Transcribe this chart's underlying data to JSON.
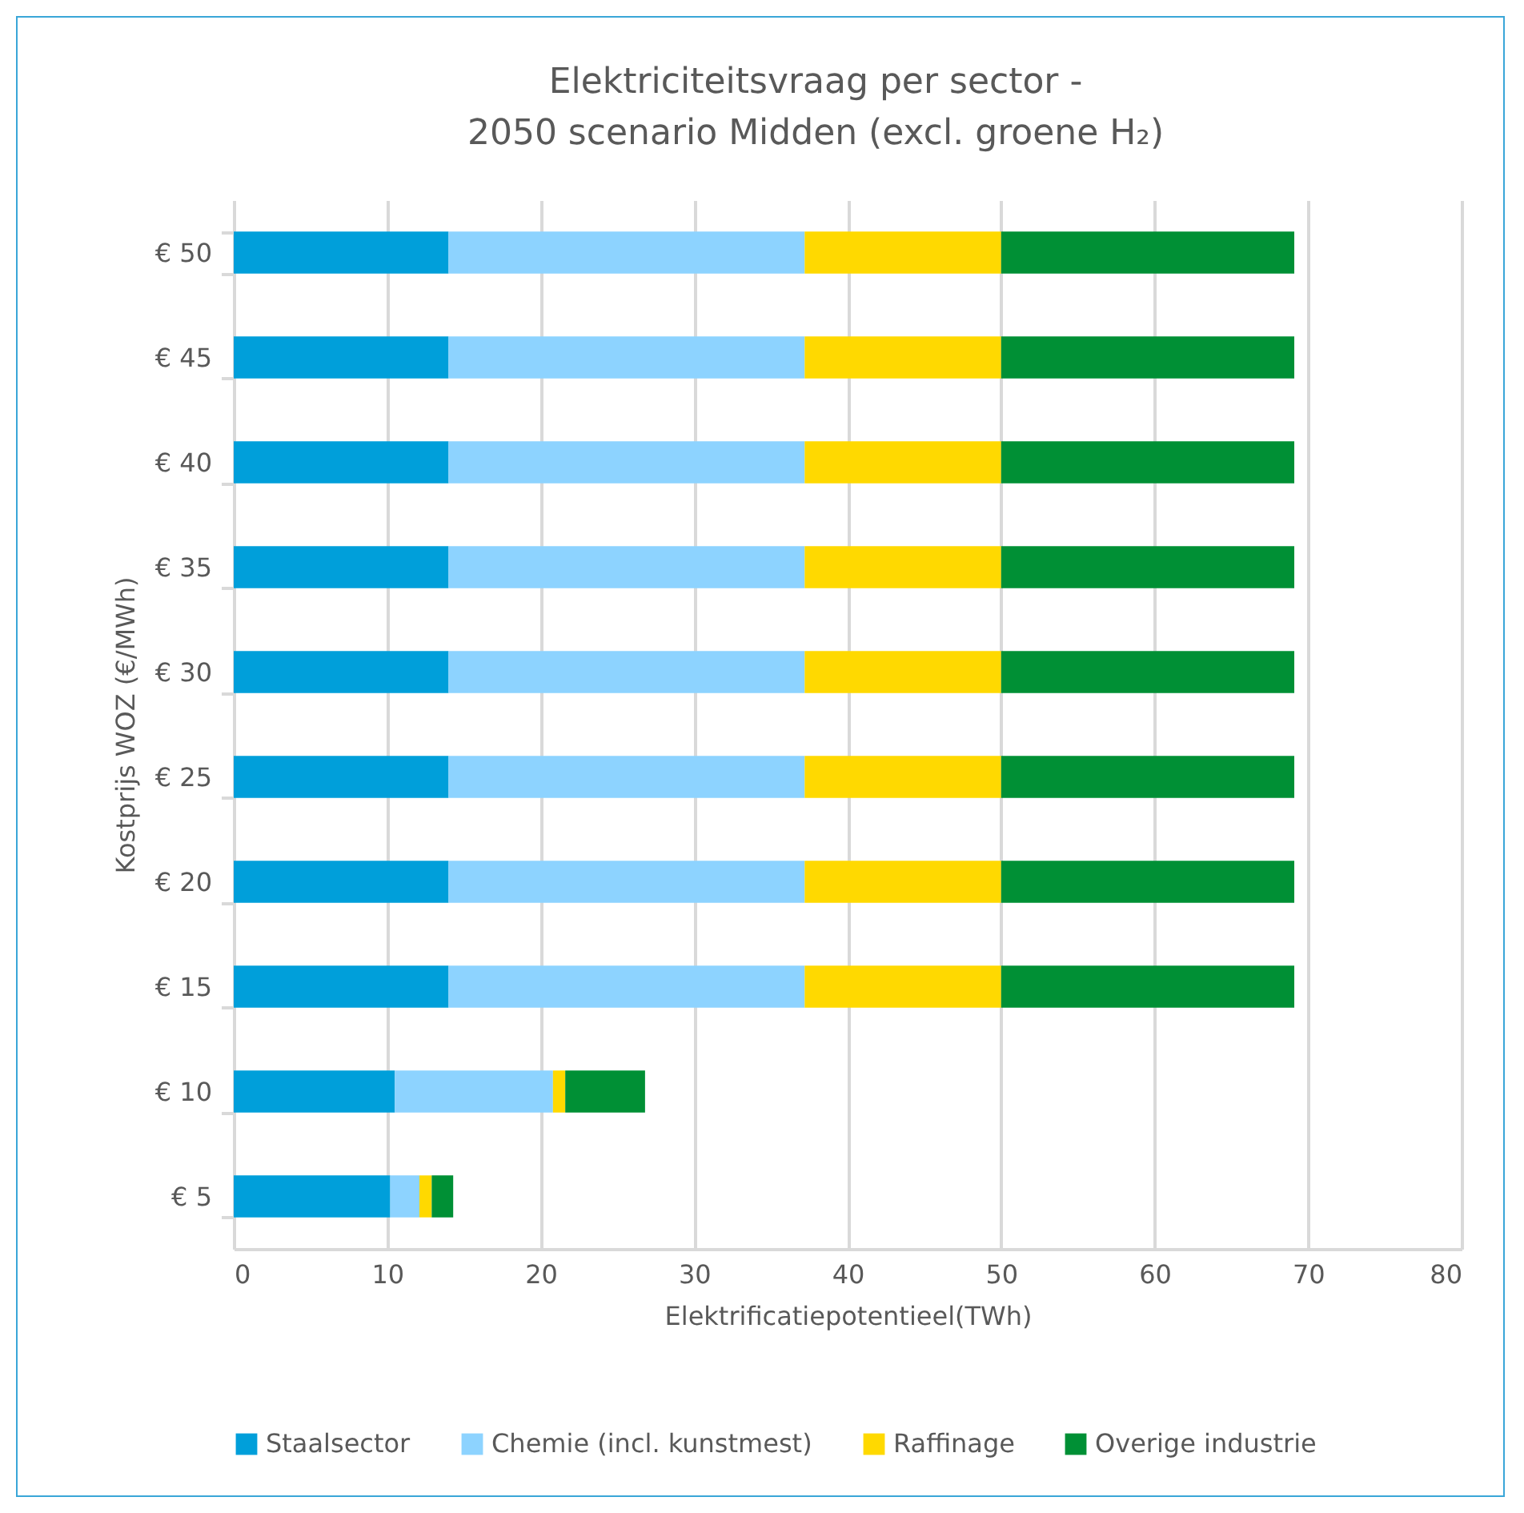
{
  "chart_data": {
    "type": "bar",
    "orientation": "horizontal",
    "stacked": true,
    "title": [
      "Elektriciteitsvraag per sector -",
      "2050 scenario Midden (excl. groene H₂)"
    ],
    "xlabel": "Elektrificatiepotentieel(TWh)",
    "ylabel": "Kostprijs WOZ (€/MWh)",
    "categories": [
      "€ 50",
      "€ 45",
      "€ 40",
      "€ 35",
      "€ 30",
      "€ 25",
      "€ 20",
      "€ 15",
      "€ 10",
      "€ 5"
    ],
    "series": [
      {
        "name": "Staalsector",
        "color": "#009fda",
        "values": [
          14,
          14,
          14,
          14,
          14,
          14,
          14,
          14,
          10.5,
          10.2
        ]
      },
      {
        "name": "Chemie (incl. kunstmest)",
        "color": "#8dd3ff",
        "values": [
          23.2,
          23.2,
          23.2,
          23.2,
          23.2,
          23.2,
          23.2,
          23.2,
          10.3,
          1.9
        ]
      },
      {
        "name": "Raffinage",
        "color": "#ffd900",
        "values": [
          12.8,
          12.8,
          12.8,
          12.8,
          12.8,
          12.8,
          12.8,
          12.8,
          0.8,
          0.8
        ]
      },
      {
        "name": "Overige industrie",
        "color": "#009035",
        "values": [
          19.1,
          19.1,
          19.1,
          19.1,
          19.1,
          19.1,
          19.1,
          19.1,
          5.2,
          1.4
        ]
      }
    ],
    "xlim": [
      0,
      80
    ],
    "xticks": [
      0,
      10,
      20,
      30,
      40,
      50,
      60,
      70,
      80
    ],
    "grid": "x",
    "legend": "bottom"
  }
}
